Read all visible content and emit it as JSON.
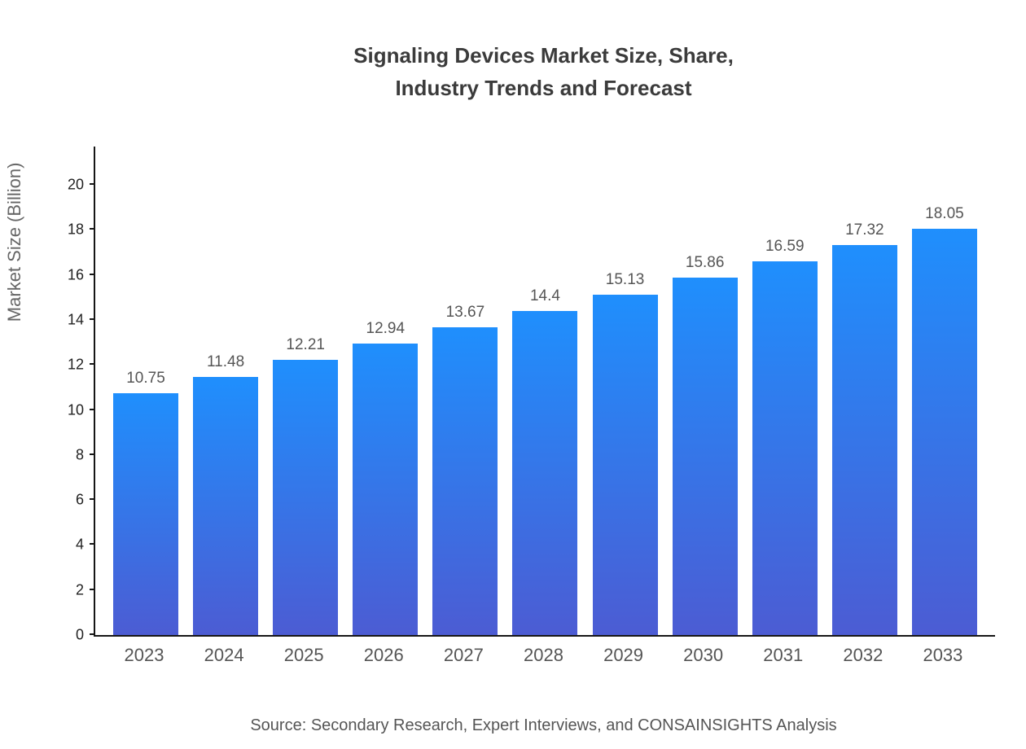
{
  "title": {
    "line1": "Signaling Devices Market Size, Share,",
    "line2": "Industry Trends and Forecast"
  },
  "chart_data": {
    "type": "bar",
    "categories": [
      "2023",
      "2024",
      "2025",
      "2026",
      "2027",
      "2028",
      "2029",
      "2030",
      "2031",
      "2032",
      "2033"
    ],
    "values": [
      10.75,
      11.48,
      12.21,
      12.94,
      13.67,
      14.4,
      15.13,
      15.86,
      16.59,
      17.32,
      18.05
    ],
    "value_labels": [
      "10.75",
      "11.48",
      "12.21",
      "12.94",
      "13.67",
      "14.4",
      "15.13",
      "15.86",
      "16.59",
      "17.32",
      "18.05"
    ],
    "title": "Signaling Devices Market Size, Share, Industry Trends and Forecast",
    "xlabel": "",
    "ylabel": "Market Size (Billion)",
    "ylim": [
      0,
      21.7
    ],
    "yticks": [
      0,
      2,
      4,
      6,
      8,
      10,
      12,
      14,
      16,
      18,
      20
    ],
    "grid": false,
    "legend": "none"
  },
  "source": "Source: Secondary Research, Expert Interviews, and CONSAINSIGHTS Analysis",
  "colors": {
    "bar_gradient_top": "#1f8ffd",
    "bar_gradient_bottom": "#4c5cd3",
    "axis": "#161616",
    "title_text": "#3b3b3b",
    "label_text": "#555555",
    "tick_text": "#222222",
    "ylabel_text": "#666666"
  }
}
